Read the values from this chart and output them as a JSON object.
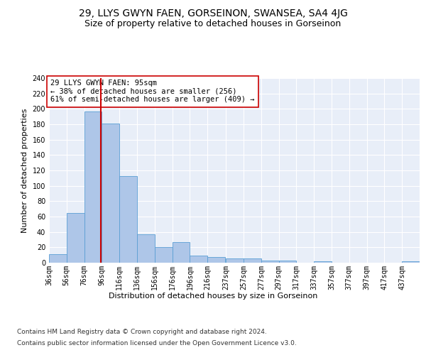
{
  "title": "29, LLYS GWYN FAEN, GORSEINON, SWANSEA, SA4 4JG",
  "subtitle": "Size of property relative to detached houses in Gorseinon",
  "xlabel": "Distribution of detached houses by size in Gorseinon",
  "ylabel": "Number of detached properties",
  "bin_labels": [
    "36sqm",
    "56sqm",
    "76sqm",
    "96sqm",
    "116sqm",
    "136sqm",
    "156sqm",
    "176sqm",
    "196sqm",
    "216sqm",
    "237sqm",
    "257sqm",
    "277sqm",
    "297sqm",
    "317sqm",
    "337sqm",
    "357sqm",
    "377sqm",
    "397sqm",
    "417sqm",
    "437sqm"
  ],
  "bin_edges": [
    36,
    56,
    76,
    96,
    116,
    136,
    156,
    176,
    196,
    216,
    237,
    257,
    277,
    297,
    317,
    337,
    357,
    377,
    397,
    417,
    437,
    457
  ],
  "bar_heights": [
    11,
    65,
    197,
    181,
    113,
    37,
    20,
    27,
    9,
    7,
    6,
    6,
    3,
    3,
    0,
    2,
    0,
    0,
    0,
    0,
    2
  ],
  "bar_color": "#aec6e8",
  "bar_edge_color": "#5a9fd4",
  "property_size": 95,
  "marker_line_color": "#cc0000",
  "annotation_text": "29 LLYS GWYN FAEN: 95sqm\n← 38% of detached houses are smaller (256)\n61% of semi-detached houses are larger (409) →",
  "annotation_box_color": "#ffffff",
  "annotation_box_edge_color": "#cc0000",
  "ylim": [
    0,
    240
  ],
  "yticks": [
    0,
    20,
    40,
    60,
    80,
    100,
    120,
    140,
    160,
    180,
    200,
    220,
    240
  ],
  "background_color": "#e8eef8",
  "grid_color": "#ffffff",
  "footer_line1": "Contains HM Land Registry data © Crown copyright and database right 2024.",
  "footer_line2": "Contains public sector information licensed under the Open Government Licence v3.0.",
  "title_fontsize": 10,
  "subtitle_fontsize": 9,
  "axis_label_fontsize": 8,
  "tick_fontsize": 7,
  "annotation_fontsize": 7.5,
  "footer_fontsize": 6.5
}
